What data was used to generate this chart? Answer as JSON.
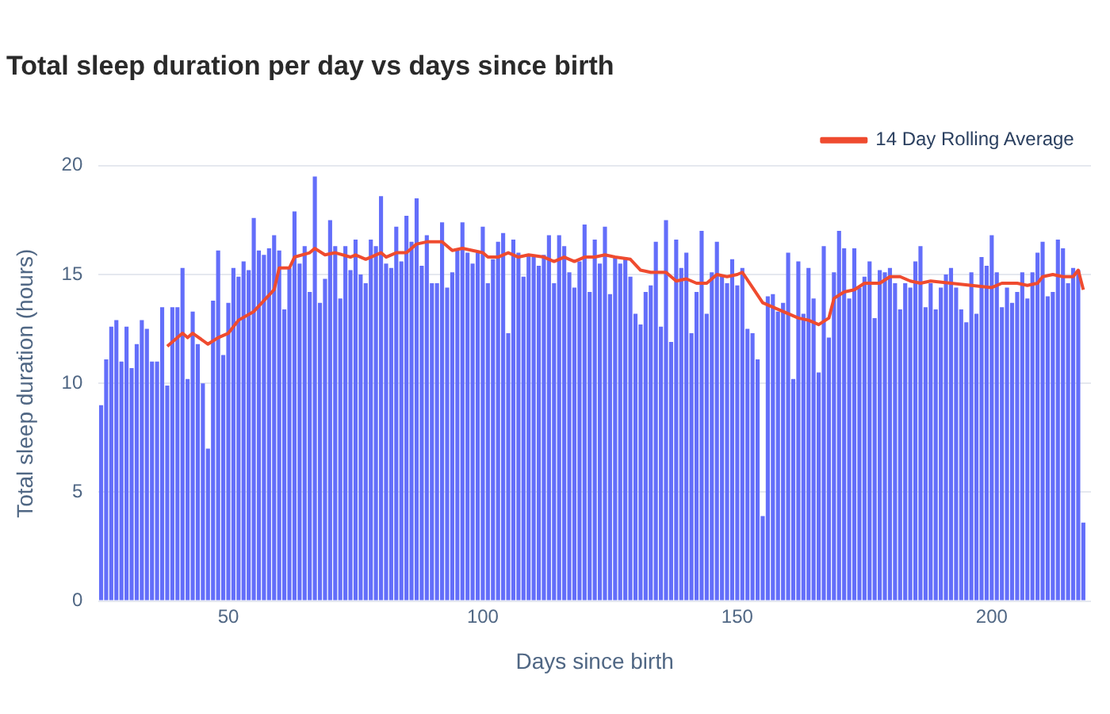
{
  "chart_data": {
    "type": "bar",
    "title": "Total sleep duration per day vs days since birth",
    "xlabel": "Days since birth",
    "ylabel": "Total sleep duration (hours)",
    "xlim": [
      24.5,
      219.5
    ],
    "xticks": [
      50,
      100,
      150,
      200
    ],
    "ylim": [
      0,
      20
    ],
    "yticks": [
      0,
      5,
      10,
      15,
      20
    ],
    "grid": "y",
    "legend": "top right",
    "x": [
      25,
      26,
      27,
      28,
      29,
      30,
      31,
      32,
      33,
      34,
      35,
      36,
      37,
      38,
      39,
      40,
      41,
      42,
      43,
      44,
      45,
      46,
      47,
      48,
      49,
      50,
      51,
      52,
      53,
      54,
      55,
      56,
      57,
      58,
      59,
      60,
      61,
      62,
      63,
      64,
      65,
      66,
      67,
      68,
      69,
      70,
      71,
      72,
      73,
      74,
      75,
      76,
      77,
      78,
      79,
      80,
      81,
      82,
      83,
      84,
      85,
      86,
      87,
      88,
      89,
      90,
      91,
      92,
      93,
      94,
      95,
      96,
      97,
      98,
      99,
      100,
      101,
      102,
      103,
      104,
      105,
      106,
      107,
      108,
      109,
      110,
      111,
      112,
      113,
      114,
      115,
      116,
      117,
      118,
      119,
      120,
      121,
      122,
      123,
      124,
      125,
      126,
      127,
      128,
      129,
      130,
      131,
      132,
      133,
      134,
      135,
      136,
      137,
      138,
      139,
      140,
      141,
      142,
      143,
      144,
      145,
      146,
      147,
      148,
      149,
      150,
      151,
      152,
      153,
      154,
      155,
      156,
      157,
      158,
      159,
      160,
      161,
      162,
      163,
      164,
      165,
      166,
      167,
      168,
      169,
      170,
      171,
      172,
      173,
      174,
      175,
      176,
      177,
      178,
      179,
      180,
      181,
      182,
      183,
      184,
      185,
      186,
      187,
      188,
      189,
      190,
      191,
      192,
      193,
      194,
      195,
      196,
      197,
      198,
      199,
      200,
      201,
      202,
      203,
      204,
      205,
      206,
      207,
      208,
      209,
      210,
      211,
      212,
      213,
      214,
      215,
      216,
      217,
      218
    ],
    "series": [
      {
        "color": "#636efa",
        "values": [
          9.0,
          11.1,
          12.6,
          12.9,
          11.0,
          12.6,
          10.7,
          11.8,
          12.9,
          12.5,
          11.0,
          11.0,
          13.5,
          9.9,
          13.5,
          13.5,
          15.3,
          10.2,
          13.3,
          11.8,
          10.0,
          7.0,
          13.8,
          16.1,
          11.3,
          13.7,
          15.3,
          14.9,
          15.6,
          15.2,
          17.6,
          16.1,
          15.9,
          16.2,
          16.8,
          16.1,
          13.4,
          15.3,
          17.9,
          15.5,
          16.3,
          14.2,
          19.5,
          13.7,
          14.8,
          17.5,
          16.3,
          13.9,
          16.3,
          15.2,
          16.6,
          15.0,
          14.6,
          16.6,
          16.3,
          18.6,
          15.5,
          15.3,
          17.2,
          15.6,
          17.7,
          16.5,
          18.5,
          15.4,
          16.8,
          14.6,
          14.6,
          17.4,
          14.4,
          15.1,
          16.1,
          17.4,
          16.0,
          15.5,
          16.0,
          17.2,
          14.6,
          15.7,
          16.5,
          16.9,
          12.3,
          16.6,
          16.0,
          14.9,
          15.9,
          15.8,
          15.4,
          15.9,
          16.8,
          14.6,
          16.8,
          16.3,
          15.1,
          14.4,
          15.6,
          17.3,
          14.2,
          16.6,
          15.5,
          17.2,
          14.1,
          15.8,
          15.5,
          15.8,
          14.9,
          13.2,
          12.7,
          14.2,
          14.5,
          16.5,
          12.6,
          17.5,
          11.9,
          16.6,
          15.3,
          16.0,
          12.3,
          14.2,
          17.0,
          13.2,
          15.1,
          16.5,
          14.9,
          14.6,
          15.7,
          14.5,
          15.3,
          12.5,
          12.3,
          11.1,
          3.9,
          14.0,
          14.1,
          13.3,
          13.7,
          16.0,
          10.2,
          15.6,
          13.2,
          15.3,
          13.9,
          10.5,
          16.3,
          12.1,
          15.1,
          17.0,
          16.2,
          13.9,
          16.2,
          14.4,
          14.9,
          15.6,
          13.0,
          15.2,
          15.1,
          15.3,
          14.6,
          13.4,
          14.6,
          14.4,
          15.6,
          16.3,
          13.5,
          14.6,
          13.4,
          14.4,
          15.0,
          15.3,
          14.4,
          13.4,
          12.8,
          15.1,
          13.2,
          15.8,
          15.4,
          16.8,
          15.1,
          13.5,
          14.4,
          13.7,
          14.2,
          15.1,
          13.9,
          15.1,
          16.0,
          16.5,
          14.0,
          14.2,
          16.6,
          16.2,
          14.6,
          15.3,
          15.2,
          3.6
        ]
      },
      {
        "type": "line",
        "name": "14 Day Rolling Average",
        "color": "#ef4b2f",
        "x": [
          38,
          41,
          42,
          43,
          46,
          48,
          50,
          52,
          55,
          57,
          59,
          60,
          62,
          63,
          66,
          67,
          69,
          71,
          74,
          75,
          77,
          80,
          81,
          83,
          85,
          87,
          89,
          92,
          94,
          96,
          98,
          100,
          101,
          103,
          105,
          107,
          109,
          112,
          114,
          116,
          118,
          120,
          122,
          124,
          126,
          129,
          131,
          133,
          135,
          136,
          138,
          140,
          142,
          144,
          146,
          148,
          150,
          151,
          153,
          155,
          157,
          159,
          160,
          162,
          164,
          166,
          168,
          169,
          171,
          173,
          175,
          178,
          180,
          182,
          184,
          186,
          188,
          192,
          196,
          200,
          202,
          205,
          207,
          209,
          210,
          212,
          214,
          216,
          217,
          218
        ],
        "values": [
          11.7,
          12.3,
          12.1,
          12.3,
          11.8,
          12.1,
          12.3,
          12.9,
          13.3,
          13.8,
          14.3,
          15.3,
          15.3,
          15.8,
          16.0,
          16.2,
          15.9,
          16.0,
          15.8,
          15.9,
          15.7,
          16.0,
          15.8,
          16.0,
          16.0,
          16.4,
          16.5,
          16.5,
          16.1,
          16.2,
          16.1,
          16.0,
          15.8,
          15.8,
          16.0,
          15.8,
          15.9,
          15.8,
          15.6,
          15.8,
          15.6,
          15.8,
          15.8,
          15.9,
          15.8,
          15.7,
          15.2,
          15.1,
          15.1,
          15.1,
          14.7,
          14.8,
          14.6,
          14.6,
          15.0,
          14.9,
          15.0,
          15.1,
          14.4,
          13.7,
          13.5,
          13.3,
          13.2,
          13.0,
          12.9,
          12.7,
          13.0,
          13.9,
          14.2,
          14.3,
          14.6,
          14.6,
          14.9,
          14.9,
          14.7,
          14.6,
          14.7,
          14.6,
          14.5,
          14.4,
          14.6,
          14.6,
          14.5,
          14.6,
          14.9,
          15.0,
          14.9,
          14.9,
          15.2,
          14.3
        ]
      }
    ]
  }
}
